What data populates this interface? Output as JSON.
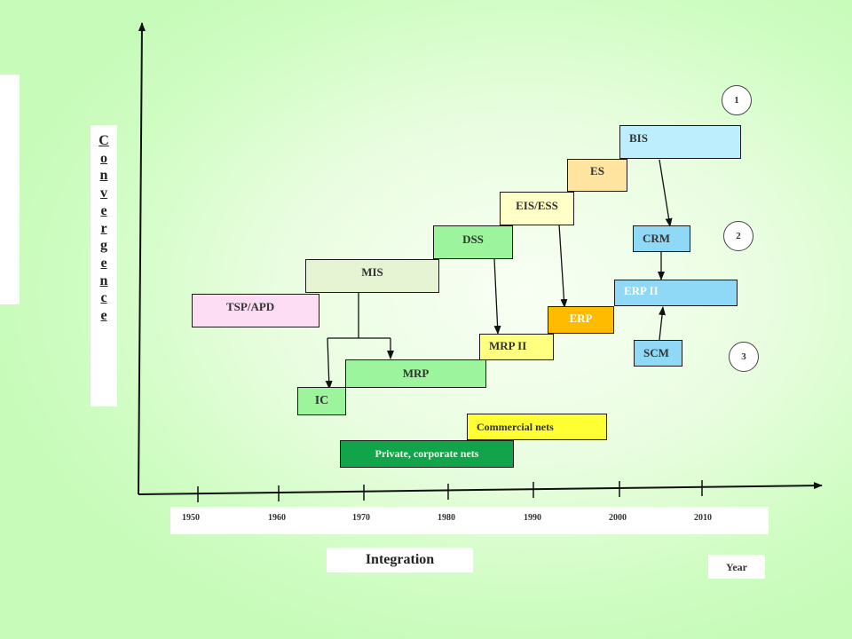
{
  "axis": {
    "vertical_label": "Convergence",
    "horizontal_label": "Integration",
    "unit_label": "Year",
    "years": [
      "1950",
      "1960",
      "1970",
      "1980",
      "1990",
      "2000",
      "2010"
    ]
  },
  "boxes": {
    "tsp_apd": "TSP/APD",
    "mis": "MIS",
    "ic": "IC",
    "mrp": "MRP",
    "dss": "DSS",
    "mrp2": "MRP II",
    "eis_ess": "EIS/ESS",
    "erp": "ERP",
    "es": "ES",
    "bis": "BIS",
    "crm": "CRM",
    "erp2": "ERP II",
    "scm": "SCM",
    "commercial_nets": "Commercial nets",
    "private_nets": "Private, corporate nets"
  },
  "markers": [
    "1",
    "2",
    "3"
  ],
  "colors": {
    "tsp_apd": "#fdddf3",
    "mis": "#e6f4d4",
    "ic": "#9cf59c",
    "mrp": "#9cf59c",
    "dss": "#9cf59c",
    "mrp2": "#ffff80",
    "eis_ess": "#ffffc8",
    "erp": "#ffbb00",
    "es": "#ffe4a0",
    "bis": "#bdeefe",
    "crm": "#8fd9f7",
    "erp2": "#8fd9f7",
    "scm": "#8fd9f7",
    "commercial_nets": "#ffff33",
    "private_nets": "#12a44a"
  }
}
